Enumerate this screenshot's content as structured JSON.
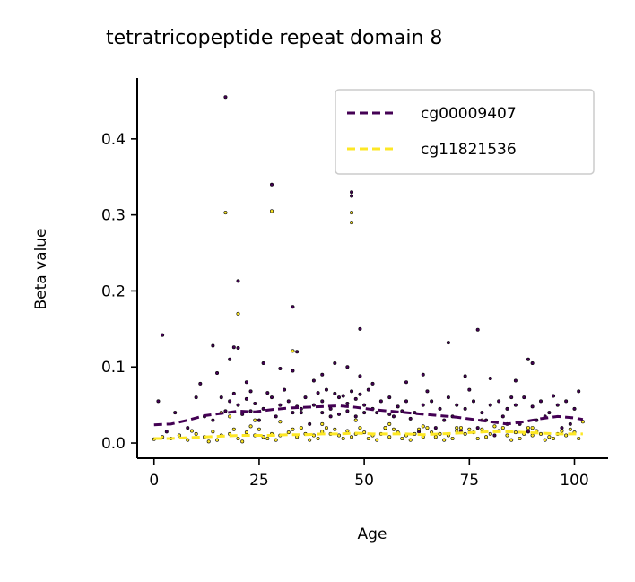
{
  "chart_data": {
    "type": "scatter",
    "title": "tetratricopeptide repeat domain 8",
    "xlabel": "Age",
    "ylabel": "Beta value",
    "xlim": [
      -4,
      108
    ],
    "ylim": [
      -0.02,
      0.48
    ],
    "xticks": [
      0,
      25,
      50,
      75,
      100
    ],
    "yticks": [
      0.0,
      0.1,
      0.2,
      0.3,
      0.4
    ],
    "xtick_labels": [
      "0",
      "25",
      "50",
      "75",
      "100"
    ],
    "ytick_labels": [
      "0.0",
      "0.1",
      "0.2",
      "0.3",
      "0.4"
    ],
    "grid": false,
    "legend_position": "top-right",
    "series": [
      {
        "name": "cg00009407",
        "color": "#440154",
        "trend": {
          "x": [
            0,
            4,
            8,
            12,
            16,
            20,
            24,
            28,
            32,
            36,
            40,
            44,
            48,
            52,
            56,
            60,
            64,
            68,
            72,
            76,
            80,
            84,
            88,
            92,
            96,
            100,
            102
          ],
          "y": [
            0.024,
            0.025,
            0.03,
            0.036,
            0.039,
            0.042,
            0.041,
            0.044,
            0.046,
            0.047,
            0.048,
            0.049,
            0.047,
            0.044,
            0.042,
            0.04,
            0.038,
            0.036,
            0.034,
            0.031,
            0.028,
            0.025,
            0.028,
            0.032,
            0.035,
            0.033,
            0.031
          ]
        },
        "points": [
          [
            17,
            0.455
          ],
          [
            28,
            0.34
          ],
          [
            47,
            0.33
          ],
          [
            47,
            0.325
          ],
          [
            20,
            0.213
          ],
          [
            33,
            0.179
          ],
          [
            49,
            0.15
          ],
          [
            77,
            0.149
          ],
          [
            2,
            0.142
          ],
          [
            70,
            0.132
          ],
          [
            14,
            0.128
          ],
          [
            19,
            0.126
          ],
          [
            20,
            0.125
          ],
          [
            34,
            0.12
          ],
          [
            18,
            0.11
          ],
          [
            26,
            0.105
          ],
          [
            30,
            0.098
          ],
          [
            43,
            0.105
          ],
          [
            46,
            0.1
          ],
          [
            89,
            0.11
          ],
          [
            90,
            0.105
          ],
          [
            33,
            0.095
          ],
          [
            15,
            0.092
          ],
          [
            40,
            0.09
          ],
          [
            49,
            0.088
          ],
          [
            64,
            0.09
          ],
          [
            74,
            0.088
          ],
          [
            80,
            0.085
          ],
          [
            11,
            0.078
          ],
          [
            22,
            0.08
          ],
          [
            38,
            0.082
          ],
          [
            52,
            0.078
          ],
          [
            60,
            0.08
          ],
          [
            86,
            0.082
          ],
          [
            101,
            0.068
          ],
          [
            1,
            0.055
          ],
          [
            5,
            0.04
          ],
          [
            10,
            0.06
          ],
          [
            16,
            0.06
          ],
          [
            18,
            0.055
          ],
          [
            20,
            0.05
          ],
          [
            22,
            0.058
          ],
          [
            24,
            0.052
          ],
          [
            26,
            0.045
          ],
          [
            28,
            0.06
          ],
          [
            30,
            0.05
          ],
          [
            32,
            0.055
          ],
          [
            34,
            0.048
          ],
          [
            36,
            0.06
          ],
          [
            38,
            0.05
          ],
          [
            40,
            0.055
          ],
          [
            42,
            0.045
          ],
          [
            44,
            0.06
          ],
          [
            46,
            0.052
          ],
          [
            48,
            0.058
          ],
          [
            50,
            0.05
          ],
          [
            52,
            0.045
          ],
          [
            54,
            0.055
          ],
          [
            56,
            0.06
          ],
          [
            58,
            0.048
          ],
          [
            60,
            0.055
          ],
          [
            62,
            0.04
          ],
          [
            64,
            0.05
          ],
          [
            66,
            0.055
          ],
          [
            68,
            0.045
          ],
          [
            70,
            0.06
          ],
          [
            72,
            0.05
          ],
          [
            74,
            0.045
          ],
          [
            76,
            0.055
          ],
          [
            78,
            0.04
          ],
          [
            80,
            0.05
          ],
          [
            82,
            0.055
          ],
          [
            84,
            0.045
          ],
          [
            86,
            0.05
          ],
          [
            88,
            0.06
          ],
          [
            90,
            0.048
          ],
          [
            92,
            0.055
          ],
          [
            94,
            0.04
          ],
          [
            96,
            0.05
          ],
          [
            98,
            0.055
          ],
          [
            100,
            0.045
          ],
          [
            17,
            0.042
          ],
          [
            19,
            0.065
          ],
          [
            23,
            0.068
          ],
          [
            27,
            0.066
          ],
          [
            31,
            0.07
          ],
          [
            35,
            0.04
          ],
          [
            39,
            0.066
          ],
          [
            41,
            0.07
          ],
          [
            43,
            0.065
          ],
          [
            45,
            0.062
          ],
          [
            47,
            0.068
          ],
          [
            49,
            0.064
          ],
          [
            51,
            0.07
          ],
          [
            53,
            0.04
          ],
          [
            57,
            0.035
          ],
          [
            61,
            0.032
          ],
          [
            65,
            0.068
          ],
          [
            69,
            0.03
          ],
          [
            71,
            0.035
          ],
          [
            75,
            0.07
          ],
          [
            79,
            0.03
          ],
          [
            83,
            0.035
          ],
          [
            85,
            0.06
          ],
          [
            87,
            0.025
          ],
          [
            91,
            0.03
          ],
          [
            93,
            0.035
          ],
          [
            95,
            0.062
          ],
          [
            97,
            0.02
          ],
          [
            99,
            0.025
          ],
          [
            12,
            0.035
          ],
          [
            14,
            0.03
          ],
          [
            8,
            0.02
          ],
          [
            3,
            0.015
          ],
          [
            6,
            0.01
          ],
          [
            25,
            0.03
          ],
          [
            29,
            0.035
          ],
          [
            37,
            0.025
          ],
          [
            55,
            0.02
          ],
          [
            63,
            0.015
          ],
          [
            67,
            0.02
          ],
          [
            73,
            0.015
          ],
          [
            77,
            0.02
          ],
          [
            81,
            0.01
          ],
          [
            89,
            0.015
          ],
          [
            44,
            0.038
          ],
          [
            46,
            0.042
          ],
          [
            48,
            0.035
          ],
          [
            50,
            0.04
          ],
          [
            21,
            0.038
          ],
          [
            23,
            0.042
          ],
          [
            33,
            0.04
          ],
          [
            35,
            0.045
          ],
          [
            40,
            0.04
          ],
          [
            42,
            0.035
          ],
          [
            56,
            0.038
          ],
          [
            59,
            0.042
          ]
        ]
      },
      {
        "name": "cg11821536",
        "color": "#fde725",
        "trend": {
          "x": [
            0,
            4,
            8,
            12,
            16,
            20,
            24,
            28,
            32,
            36,
            40,
            44,
            48,
            52,
            56,
            60,
            64,
            68,
            72,
            76,
            80,
            84,
            88,
            92,
            96,
            100,
            102
          ],
          "y": [
            0.006,
            0.006,
            0.007,
            0.008,
            0.009,
            0.01,
            0.01,
            0.01,
            0.011,
            0.011,
            0.012,
            0.012,
            0.013,
            0.012,
            0.012,
            0.012,
            0.011,
            0.012,
            0.013,
            0.014,
            0.015,
            0.015,
            0.014,
            0.013,
            0.012,
            0.012,
            0.012
          ]
        },
        "points": [
          [
            17,
            0.303
          ],
          [
            28,
            0.305
          ],
          [
            47,
            0.303
          ],
          [
            47,
            0.29
          ],
          [
            20,
            0.17
          ],
          [
            33,
            0.121
          ],
          [
            16,
            0.04
          ],
          [
            18,
            0.035
          ],
          [
            24,
            0.03
          ],
          [
            30,
            0.028
          ],
          [
            40,
            0.025
          ],
          [
            48,
            0.03
          ],
          [
            56,
            0.025
          ],
          [
            64,
            0.022
          ],
          [
            72,
            0.02
          ],
          [
            78,
            0.03
          ],
          [
            84,
            0.025
          ],
          [
            90,
            0.02
          ],
          [
            102,
            0.028
          ],
          [
            0,
            0.005
          ],
          [
            2,
            0.008
          ],
          [
            4,
            0.006
          ],
          [
            6,
            0.01
          ],
          [
            8,
            0.004
          ],
          [
            10,
            0.012
          ],
          [
            12,
            0.008
          ],
          [
            14,
            0.015
          ],
          [
            16,
            0.01
          ],
          [
            18,
            0.012
          ],
          [
            20,
            0.006
          ],
          [
            22,
            0.014
          ],
          [
            24,
            0.01
          ],
          [
            26,
            0.008
          ],
          [
            28,
            0.012
          ],
          [
            30,
            0.01
          ],
          [
            32,
            0.014
          ],
          [
            34,
            0.008
          ],
          [
            36,
            0.012
          ],
          [
            38,
            0.01
          ],
          [
            40,
            0.015
          ],
          [
            42,
            0.012
          ],
          [
            44,
            0.01
          ],
          [
            46,
            0.016
          ],
          [
            48,
            0.012
          ],
          [
            50,
            0.014
          ],
          [
            52,
            0.01
          ],
          [
            54,
            0.012
          ],
          [
            56,
            0.008
          ],
          [
            58,
            0.014
          ],
          [
            60,
            0.01
          ],
          [
            62,
            0.012
          ],
          [
            64,
            0.008
          ],
          [
            66,
            0.014
          ],
          [
            68,
            0.012
          ],
          [
            70,
            0.01
          ],
          [
            72,
            0.016
          ],
          [
            74,
            0.012
          ],
          [
            76,
            0.014
          ],
          [
            78,
            0.018
          ],
          [
            80,
            0.012
          ],
          [
            82,
            0.016
          ],
          [
            84,
            0.01
          ],
          [
            86,
            0.014
          ],
          [
            88,
            0.012
          ],
          [
            90,
            0.01
          ],
          [
            92,
            0.012
          ],
          [
            94,
            0.008
          ],
          [
            96,
            0.012
          ],
          [
            98,
            0.01
          ],
          [
            100,
            0.014
          ],
          [
            15,
            0.004
          ],
          [
            19,
            0.018
          ],
          [
            21,
            0.002
          ],
          [
            25,
            0.018
          ],
          [
            29,
            0.004
          ],
          [
            33,
            0.018
          ],
          [
            37,
            0.004
          ],
          [
            41,
            0.02
          ],
          [
            45,
            0.006
          ],
          [
            49,
            0.02
          ],
          [
            53,
            0.004
          ],
          [
            57,
            0.018
          ],
          [
            61,
            0.004
          ],
          [
            65,
            0.02
          ],
          [
            69,
            0.004
          ],
          [
            73,
            0.02
          ],
          [
            77,
            0.006
          ],
          [
            81,
            0.022
          ],
          [
            85,
            0.004
          ],
          [
            89,
            0.02
          ],
          [
            93,
            0.004
          ],
          [
            97,
            0.016
          ],
          [
            101,
            0.006
          ],
          [
            9,
            0.016
          ],
          [
            13,
            0.002
          ],
          [
            23,
            0.022
          ],
          [
            27,
            0.006
          ],
          [
            35,
            0.02
          ],
          [
            39,
            0.006
          ],
          [
            43,
            0.018
          ],
          [
            47,
            0.008
          ],
          [
            51,
            0.006
          ],
          [
            55,
            0.02
          ],
          [
            59,
            0.006
          ],
          [
            63,
            0.018
          ],
          [
            67,
            0.008
          ],
          [
            71,
            0.006
          ],
          [
            75,
            0.018
          ],
          [
            79,
            0.008
          ],
          [
            83,
            0.02
          ],
          [
            87,
            0.006
          ],
          [
            91,
            0.016
          ],
          [
            95,
            0.006
          ],
          [
            99,
            0.018
          ]
        ]
      }
    ]
  }
}
